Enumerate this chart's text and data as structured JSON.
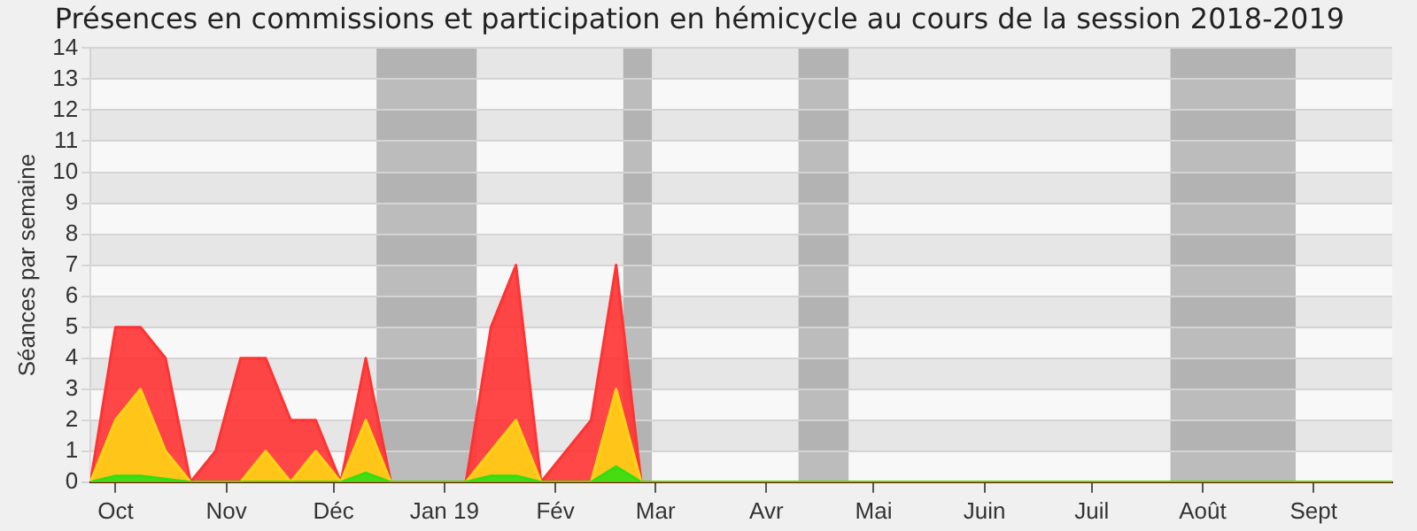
{
  "chart_data": {
    "type": "area",
    "title": "Présences en commissions et participation en hémicycle au cours de la session 2018-2019",
    "ylabel": "Séances par semaine",
    "x": [
      "2018-09-24",
      "2018-10-01",
      "2018-10-08",
      "2018-10-15",
      "2018-10-22",
      "2018-10-29",
      "2018-11-05",
      "2018-11-12",
      "2018-11-19",
      "2018-11-26",
      "2018-12-03",
      "2018-12-10",
      "2018-12-17",
      "2018-12-24",
      "2018-12-31",
      "2019-01-07",
      "2019-01-14",
      "2019-01-21",
      "2019-01-28",
      "2019-02-04",
      "2019-02-11",
      "2019-02-18",
      "2019-02-25",
      "2019-03-04",
      "2019-03-11",
      "2019-03-18",
      "2019-03-25",
      "2019-04-01",
      "2019-04-08",
      "2019-04-15",
      "2019-04-22",
      "2019-04-29",
      "2019-05-06",
      "2019-05-13",
      "2019-05-20",
      "2019-05-27",
      "2019-06-03",
      "2019-06-10",
      "2019-06-17",
      "2019-06-24",
      "2019-07-01",
      "2019-07-08",
      "2019-07-15",
      "2019-07-22",
      "2019-07-29",
      "2019-08-05",
      "2019-08-12",
      "2019-08-19",
      "2019-08-26",
      "2019-09-02",
      "2019-09-09",
      "2019-09-16",
      "2019-09-23"
    ],
    "series": [
      {
        "color": "#ff3333",
        "values": [
          0,
          5,
          5,
          4,
          0,
          1,
          4,
          4,
          2,
          2,
          0,
          4,
          0,
          0,
          0,
          0,
          5,
          7,
          0,
          1,
          2,
          7,
          0,
          0,
          0,
          0,
          0,
          0,
          0,
          0,
          0,
          0,
          0,
          0,
          0,
          0,
          0,
          0,
          0,
          0,
          0,
          0,
          0,
          0,
          0,
          0,
          0,
          0,
          0,
          0,
          0,
          0,
          0
        ]
      },
      {
        "color": "#ffd414",
        "values": [
          0,
          2,
          3,
          1,
          0,
          0,
          0,
          1,
          0,
          1,
          0,
          2,
          0,
          0,
          0,
          0,
          1,
          2,
          0,
          0,
          0,
          3,
          0,
          0,
          0,
          0,
          0,
          0,
          0,
          0,
          0,
          0,
          0,
          0,
          0,
          0,
          0,
          0,
          0,
          0,
          0,
          0,
          0,
          0,
          0,
          0,
          0,
          0,
          0,
          0,
          0,
          0,
          0
        ]
      },
      {
        "color": "#33dd11",
        "values": [
          0,
          0.2,
          0.2,
          0.1,
          0,
          0,
          0,
          0,
          0,
          0,
          0,
          0.3,
          0,
          0,
          0,
          0,
          0.2,
          0.2,
          0,
          0,
          0,
          0.5,
          0,
          0,
          0,
          0,
          0,
          0,
          0,
          0,
          0,
          0,
          0,
          0,
          0,
          0,
          0,
          0,
          0,
          0,
          0,
          0,
          0,
          0,
          0,
          0,
          0,
          0,
          0,
          0,
          0,
          0,
          0
        ]
      }
    ],
    "xlim": [
      "2018-09-24",
      "2019-09-23"
    ],
    "xticks": [
      {
        "value": "2018-10-01",
        "label": "Oct"
      },
      {
        "value": "2018-11-01",
        "label": "Nov"
      },
      {
        "value": "2018-12-01",
        "label": "Déc"
      },
      {
        "value": "2019-01-01",
        "label": "Jan 19"
      },
      {
        "value": "2019-02-01",
        "label": "Fév"
      },
      {
        "value": "2019-03-01",
        "label": "Mar"
      },
      {
        "value": "2019-04-01",
        "label": "Avr"
      },
      {
        "value": "2019-05-01",
        "label": "Mai"
      },
      {
        "value": "2019-06-01",
        "label": "Juin"
      },
      {
        "value": "2019-07-01",
        "label": "Juil"
      },
      {
        "value": "2019-08-01",
        "label": "Août"
      },
      {
        "value": "2019-09-01",
        "label": "Sept"
      }
    ],
    "ylim": [
      0,
      14
    ],
    "yticks": [
      0,
      1,
      2,
      3,
      4,
      5,
      6,
      7,
      8,
      9,
      10,
      11,
      12,
      13,
      14
    ],
    "bands": [
      {
        "axis": "x",
        "from": "2018-12-13",
        "to": "2019-01-10",
        "color": "#808080"
      },
      {
        "axis": "x",
        "from": "2019-02-20",
        "to": "2019-02-28",
        "color": "#808080"
      },
      {
        "axis": "x",
        "from": "2019-04-10",
        "to": "2019-04-24",
        "color": "#808080"
      },
      {
        "axis": "x",
        "from": "2019-07-23",
        "to": "2019-08-27",
        "color": "#808080"
      }
    ],
    "grid": "y",
    "legend": false,
    "marker": "none"
  }
}
